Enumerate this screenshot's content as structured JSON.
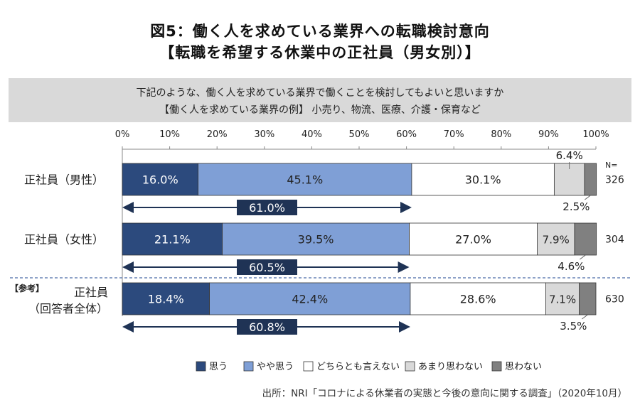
{
  "title_line1": "図5：働く人を求めている業界への転職検討意向",
  "title_line2": "【転職を希望する休業中の正社員（男女別）】",
  "question_line1": "下記のような、働く人を求めている業界で働くことを検討してもよいと思いますか",
  "question_line2": "【働く人を求めている業界の例】 小売り、物流、医療、介護・保育など",
  "source": "出所：NRI「コロナによる休業者の実態と今後の意向に関する調査」（2020年10月）",
  "chart_data": {
    "type": "bar",
    "orientation": "horizontal-stacked-100",
    "x_ticks": [
      "0%",
      "10%",
      "20%",
      "30%",
      "40%",
      "50%",
      "60%",
      "70%",
      "80%",
      "90%",
      "100%"
    ],
    "xlim": [
      0,
      100
    ],
    "n_header": "N=",
    "reference_tag": "【参考】",
    "categories": [
      {
        "label_lines": [
          "正社員（男性）"
        ],
        "n": "326",
        "combined_label": "61.0%"
      },
      {
        "label_lines": [
          "正社員（女性）"
        ],
        "n": "304",
        "combined_label": "60.5%"
      },
      {
        "label_lines": [
          "正社員",
          "（回答者全体）"
        ],
        "n": "630",
        "combined_label": "60.8%"
      }
    ],
    "series": [
      {
        "name": "思う",
        "color": "#2c4a7d",
        "label_color": "#ffffff",
        "values": [
          16.0,
          21.1,
          18.4
        ],
        "labels": [
          "16.0%",
          "21.1%",
          "18.4%"
        ]
      },
      {
        "name": "やや思う",
        "color": "#7f9fd6",
        "label_color": "#222222",
        "values": [
          45.1,
          39.5,
          42.4
        ],
        "labels": [
          "45.1%",
          "39.5%",
          "42.4%"
        ]
      },
      {
        "name": "どちらとも言えない",
        "color": "#ffffff",
        "label_color": "#222222",
        "values": [
          30.1,
          27.0,
          28.6
        ],
        "labels": [
          "30.1%",
          "27.0%",
          "28.6%"
        ]
      },
      {
        "name": "あまり思わない",
        "color": "#d9d9d9",
        "label_color": "#222222",
        "values": [
          6.4,
          7.9,
          7.1
        ],
        "labels": [
          "6.4%",
          "7.9%",
          "7.1%"
        ]
      },
      {
        "name": "思わない",
        "color": "#808080",
        "label_color": "#222222",
        "values": [
          2.5,
          4.6,
          3.5
        ],
        "labels": [
          "2.5%",
          "4.6%",
          "3.5%"
        ]
      }
    ]
  }
}
